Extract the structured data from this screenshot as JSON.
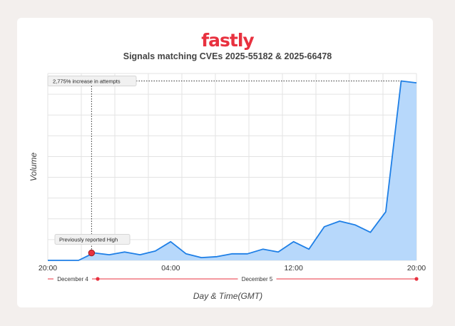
{
  "brand": {
    "name": "fastly",
    "color": "#e8313f"
  },
  "chart_data": {
    "type": "area",
    "title": "Signals matching CVEs 2025-55182 & 2025-66478",
    "xlabel": "Day & Time(GMT)",
    "ylabel": "Volume",
    "x_tick_labels": [
      "20:00",
      "04:00",
      "12:00",
      "20:00"
    ],
    "x_tick_hours": [
      0,
      8,
      16,
      24
    ],
    "xlim": [
      0,
      24
    ],
    "ylim": [
      0,
      1
    ],
    "grid": true,
    "fill_color": "#b7d8fb",
    "line_color": "#1e7fe6",
    "series": [
      {
        "x": [
          0,
          1,
          2,
          3,
          4,
          5,
          6,
          7,
          8,
          9,
          10,
          11,
          12,
          13,
          14,
          15,
          16,
          17,
          18,
          19,
          20,
          21,
          22,
          23,
          24
        ],
        "y": [
          0,
          0,
          0,
          0.04,
          0.03,
          0.045,
          0.03,
          0.05,
          0.1,
          0.035,
          0.015,
          0.02,
          0.035,
          0.035,
          0.06,
          0.045,
          0.1,
          0.06,
          0.18,
          0.21,
          0.19,
          0.15,
          0.26,
          0.96,
          0.95
        ]
      }
    ],
    "day_ranges": [
      {
        "label": "December 4",
        "start_hour": 0,
        "end_hour": 3.25
      },
      {
        "label": "December 5",
        "start_hour": 3.25,
        "end_hour": 24
      }
    ],
    "annotations": [
      {
        "text": "2,775% increase in attempts",
        "x": 23,
        "y": 0.96
      },
      {
        "text": "Previously reported High",
        "x": 2.85,
        "y": 0.04,
        "marker_color": "#e8313f"
      }
    ]
  }
}
